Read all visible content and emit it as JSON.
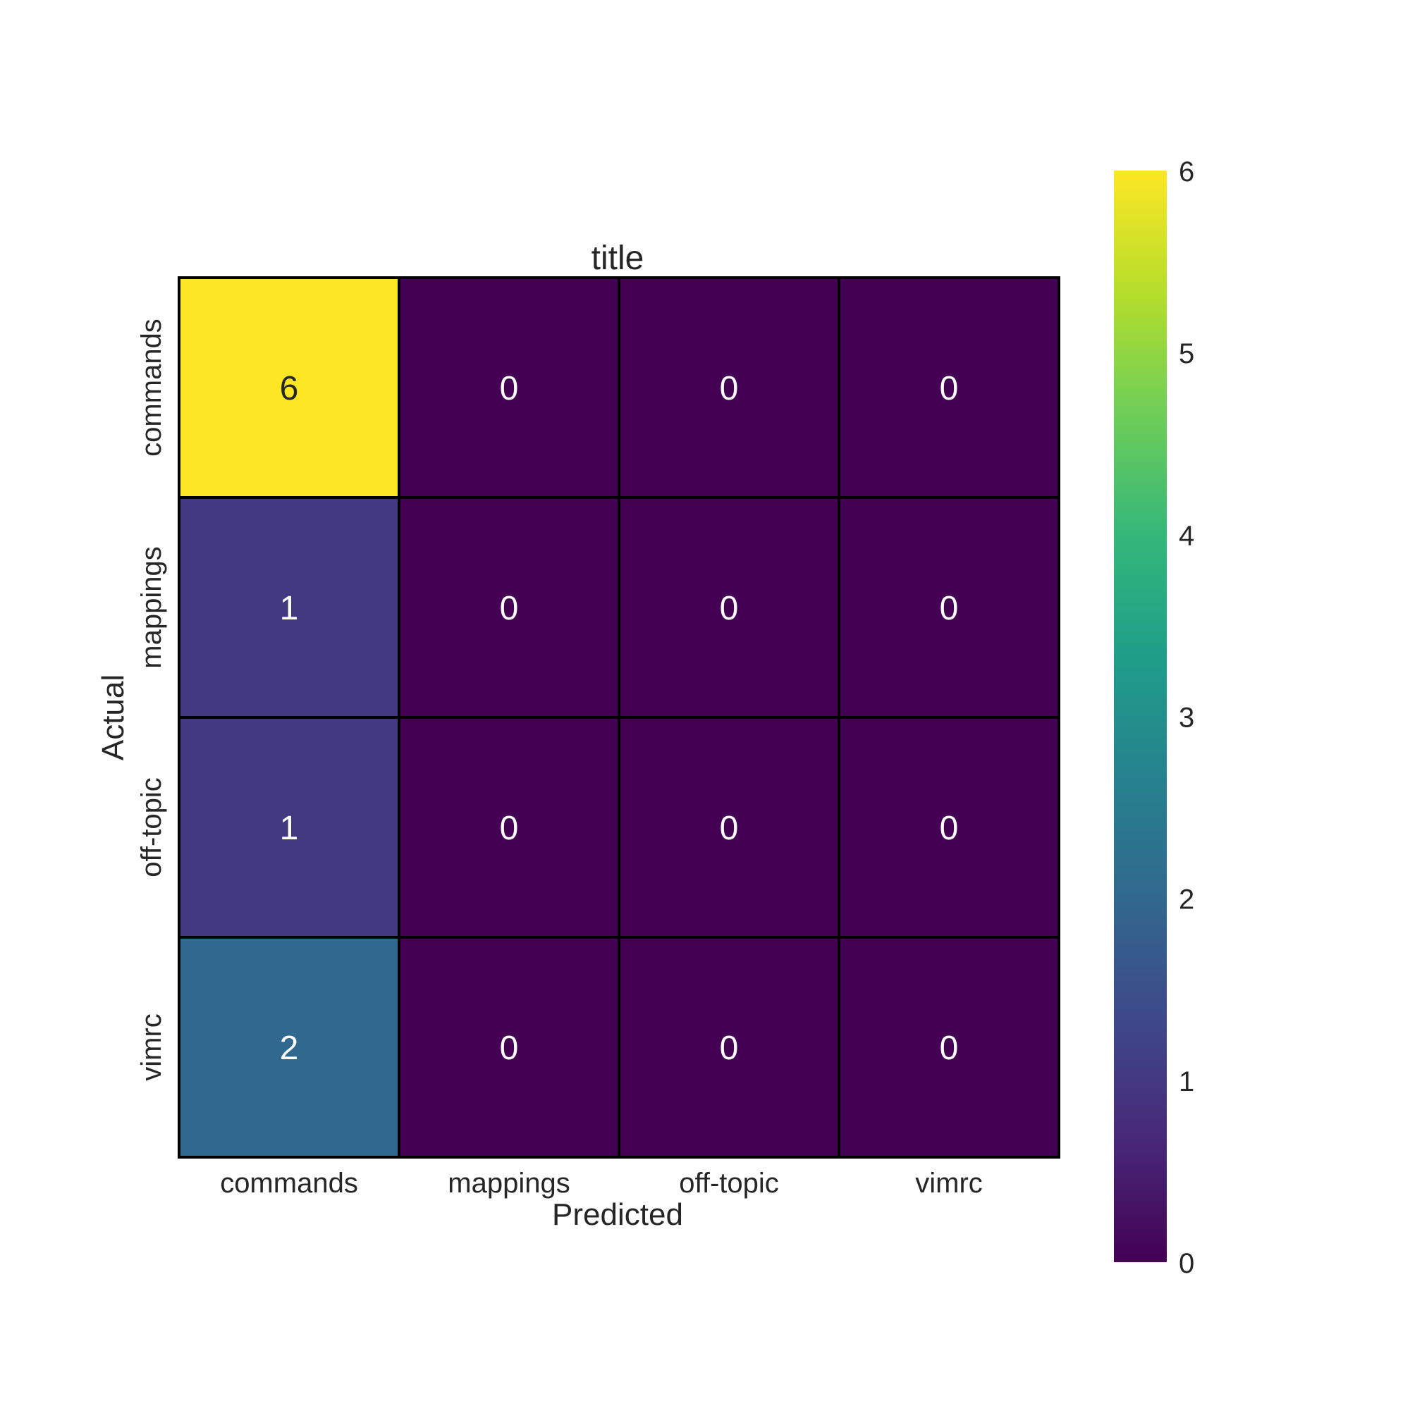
{
  "chart_data": {
    "type": "heatmap",
    "title": "title",
    "xlabel": "Predicted",
    "ylabel": "Actual",
    "x_categories": [
      "commands",
      "mappings",
      "off-topic",
      "vimrc"
    ],
    "y_categories": [
      "commands",
      "mappings",
      "off-topic",
      "vimrc"
    ],
    "values": [
      [
        6,
        0,
        0,
        0
      ],
      [
        1,
        0,
        0,
        0
      ],
      [
        1,
        0,
        0,
        0
      ],
      [
        2,
        0,
        0,
        0
      ]
    ],
    "colormap": "viridis",
    "vmin": 0,
    "vmax": 6,
    "colorbar_ticks": [
      0,
      1,
      2,
      3,
      4,
      5,
      6
    ],
    "colors": {
      "cell_border": "#000000",
      "text_dark": "#262626",
      "text_light": "#ffffff"
    }
  }
}
